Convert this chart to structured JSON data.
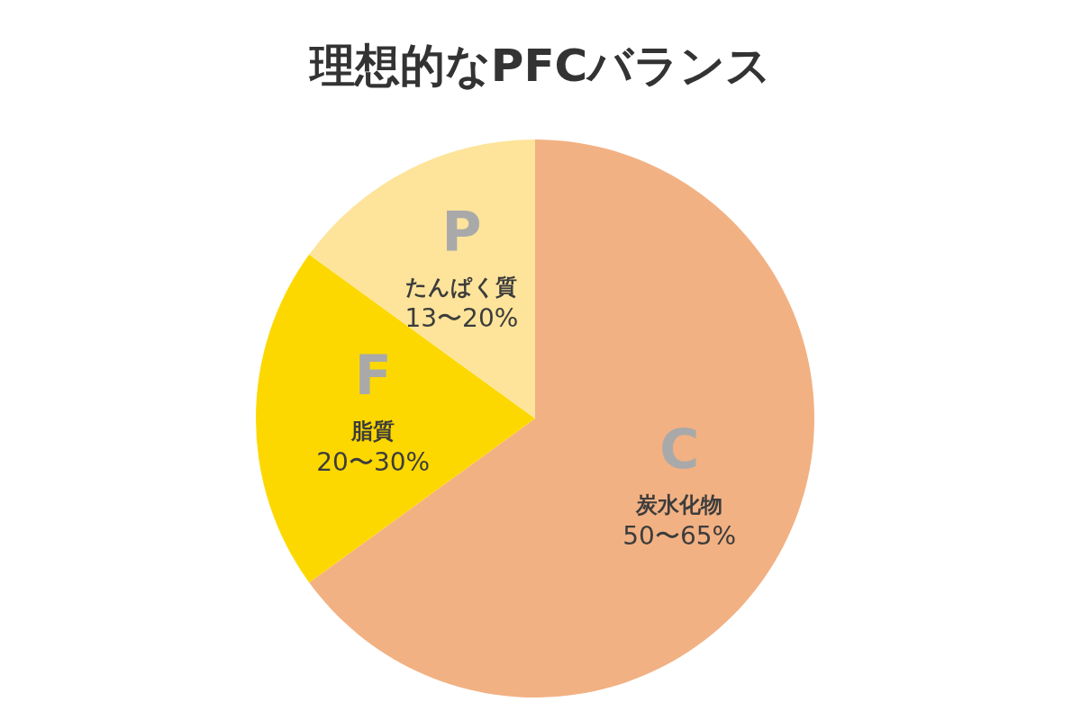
{
  "chart_data": {
    "type": "pie",
    "title": "理想的なPFCバランス",
    "categories": [
      "C",
      "F",
      "P"
    ],
    "values": [
      65,
      20,
      15
    ],
    "colors": [
      "#f2b183",
      "#fcd800",
      "#fde49a"
    ],
    "annotations": [
      "炭水化物",
      "50〜65%",
      "脂質",
      "20〜30%",
      "たんぱく質",
      "13〜20%"
    ]
  }
}
